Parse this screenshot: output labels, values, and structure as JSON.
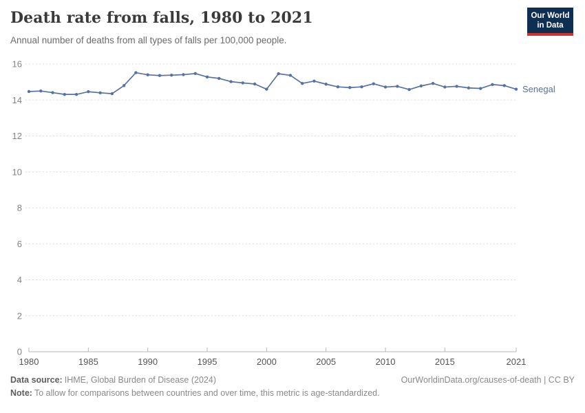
{
  "header": {
    "title": "Death rate from falls, 1980 to 2021",
    "subtitle": "Annual number of deaths from all types of falls per 100,000 people.",
    "logo": {
      "line1": "Our World",
      "line2": "in Data",
      "bg_color": "#0e2e52",
      "accent_color": "#cf342e"
    }
  },
  "chart_data": {
    "type": "line",
    "title": "Death rate from falls, 1980 to 2021",
    "xlabel": "",
    "ylabel": "",
    "ylim": [
      0,
      16
    ],
    "yticks": [
      0,
      2,
      4,
      6,
      8,
      10,
      12,
      14,
      16
    ],
    "xticks": [
      1980,
      1985,
      1990,
      1995,
      2000,
      2005,
      2010,
      2015,
      2021
    ],
    "grid": "horizontal-dashed",
    "legend_position": "end-of-line",
    "x": [
      1980,
      1981,
      1982,
      1983,
      1984,
      1985,
      1986,
      1987,
      1988,
      1989,
      1990,
      1991,
      1992,
      1993,
      1994,
      1995,
      1996,
      1997,
      1998,
      1999,
      2000,
      2001,
      2002,
      2003,
      2004,
      2005,
      2006,
      2007,
      2008,
      2009,
      2010,
      2011,
      2012,
      2013,
      2014,
      2015,
      2016,
      2017,
      2018,
      2019,
      2020,
      2021
    ],
    "series": [
      {
        "name": "Senegal",
        "color": "#5572a4",
        "values": [
          14.47,
          14.5,
          14.41,
          14.31,
          14.31,
          14.46,
          14.4,
          14.35,
          14.8,
          15.52,
          15.4,
          15.36,
          15.38,
          15.41,
          15.47,
          15.28,
          15.2,
          15.02,
          14.95,
          14.89,
          14.6,
          15.46,
          15.37,
          14.92,
          15.05,
          14.88,
          14.73,
          14.69,
          14.73,
          14.9,
          14.72,
          14.76,
          14.58,
          14.78,
          14.92,
          14.72,
          14.76,
          14.67,
          14.64,
          14.86,
          14.8,
          14.6
        ]
      }
    ],
    "style": {
      "grid_color": "#dcdcdc",
      "axis_color": "#b6b6b6",
      "ytick_color": "#848484",
      "xtick_color": "#555555"
    }
  },
  "footer": {
    "datasource_label": "Data source:",
    "datasource_text": "IHME, Global Burden of Disease (2024)",
    "link": "OurWorldinData.org/causes-of-death | CC BY",
    "note_label": "Note:",
    "note_text": "To allow for comparisons between countries and over time, this metric is age-standardized."
  }
}
